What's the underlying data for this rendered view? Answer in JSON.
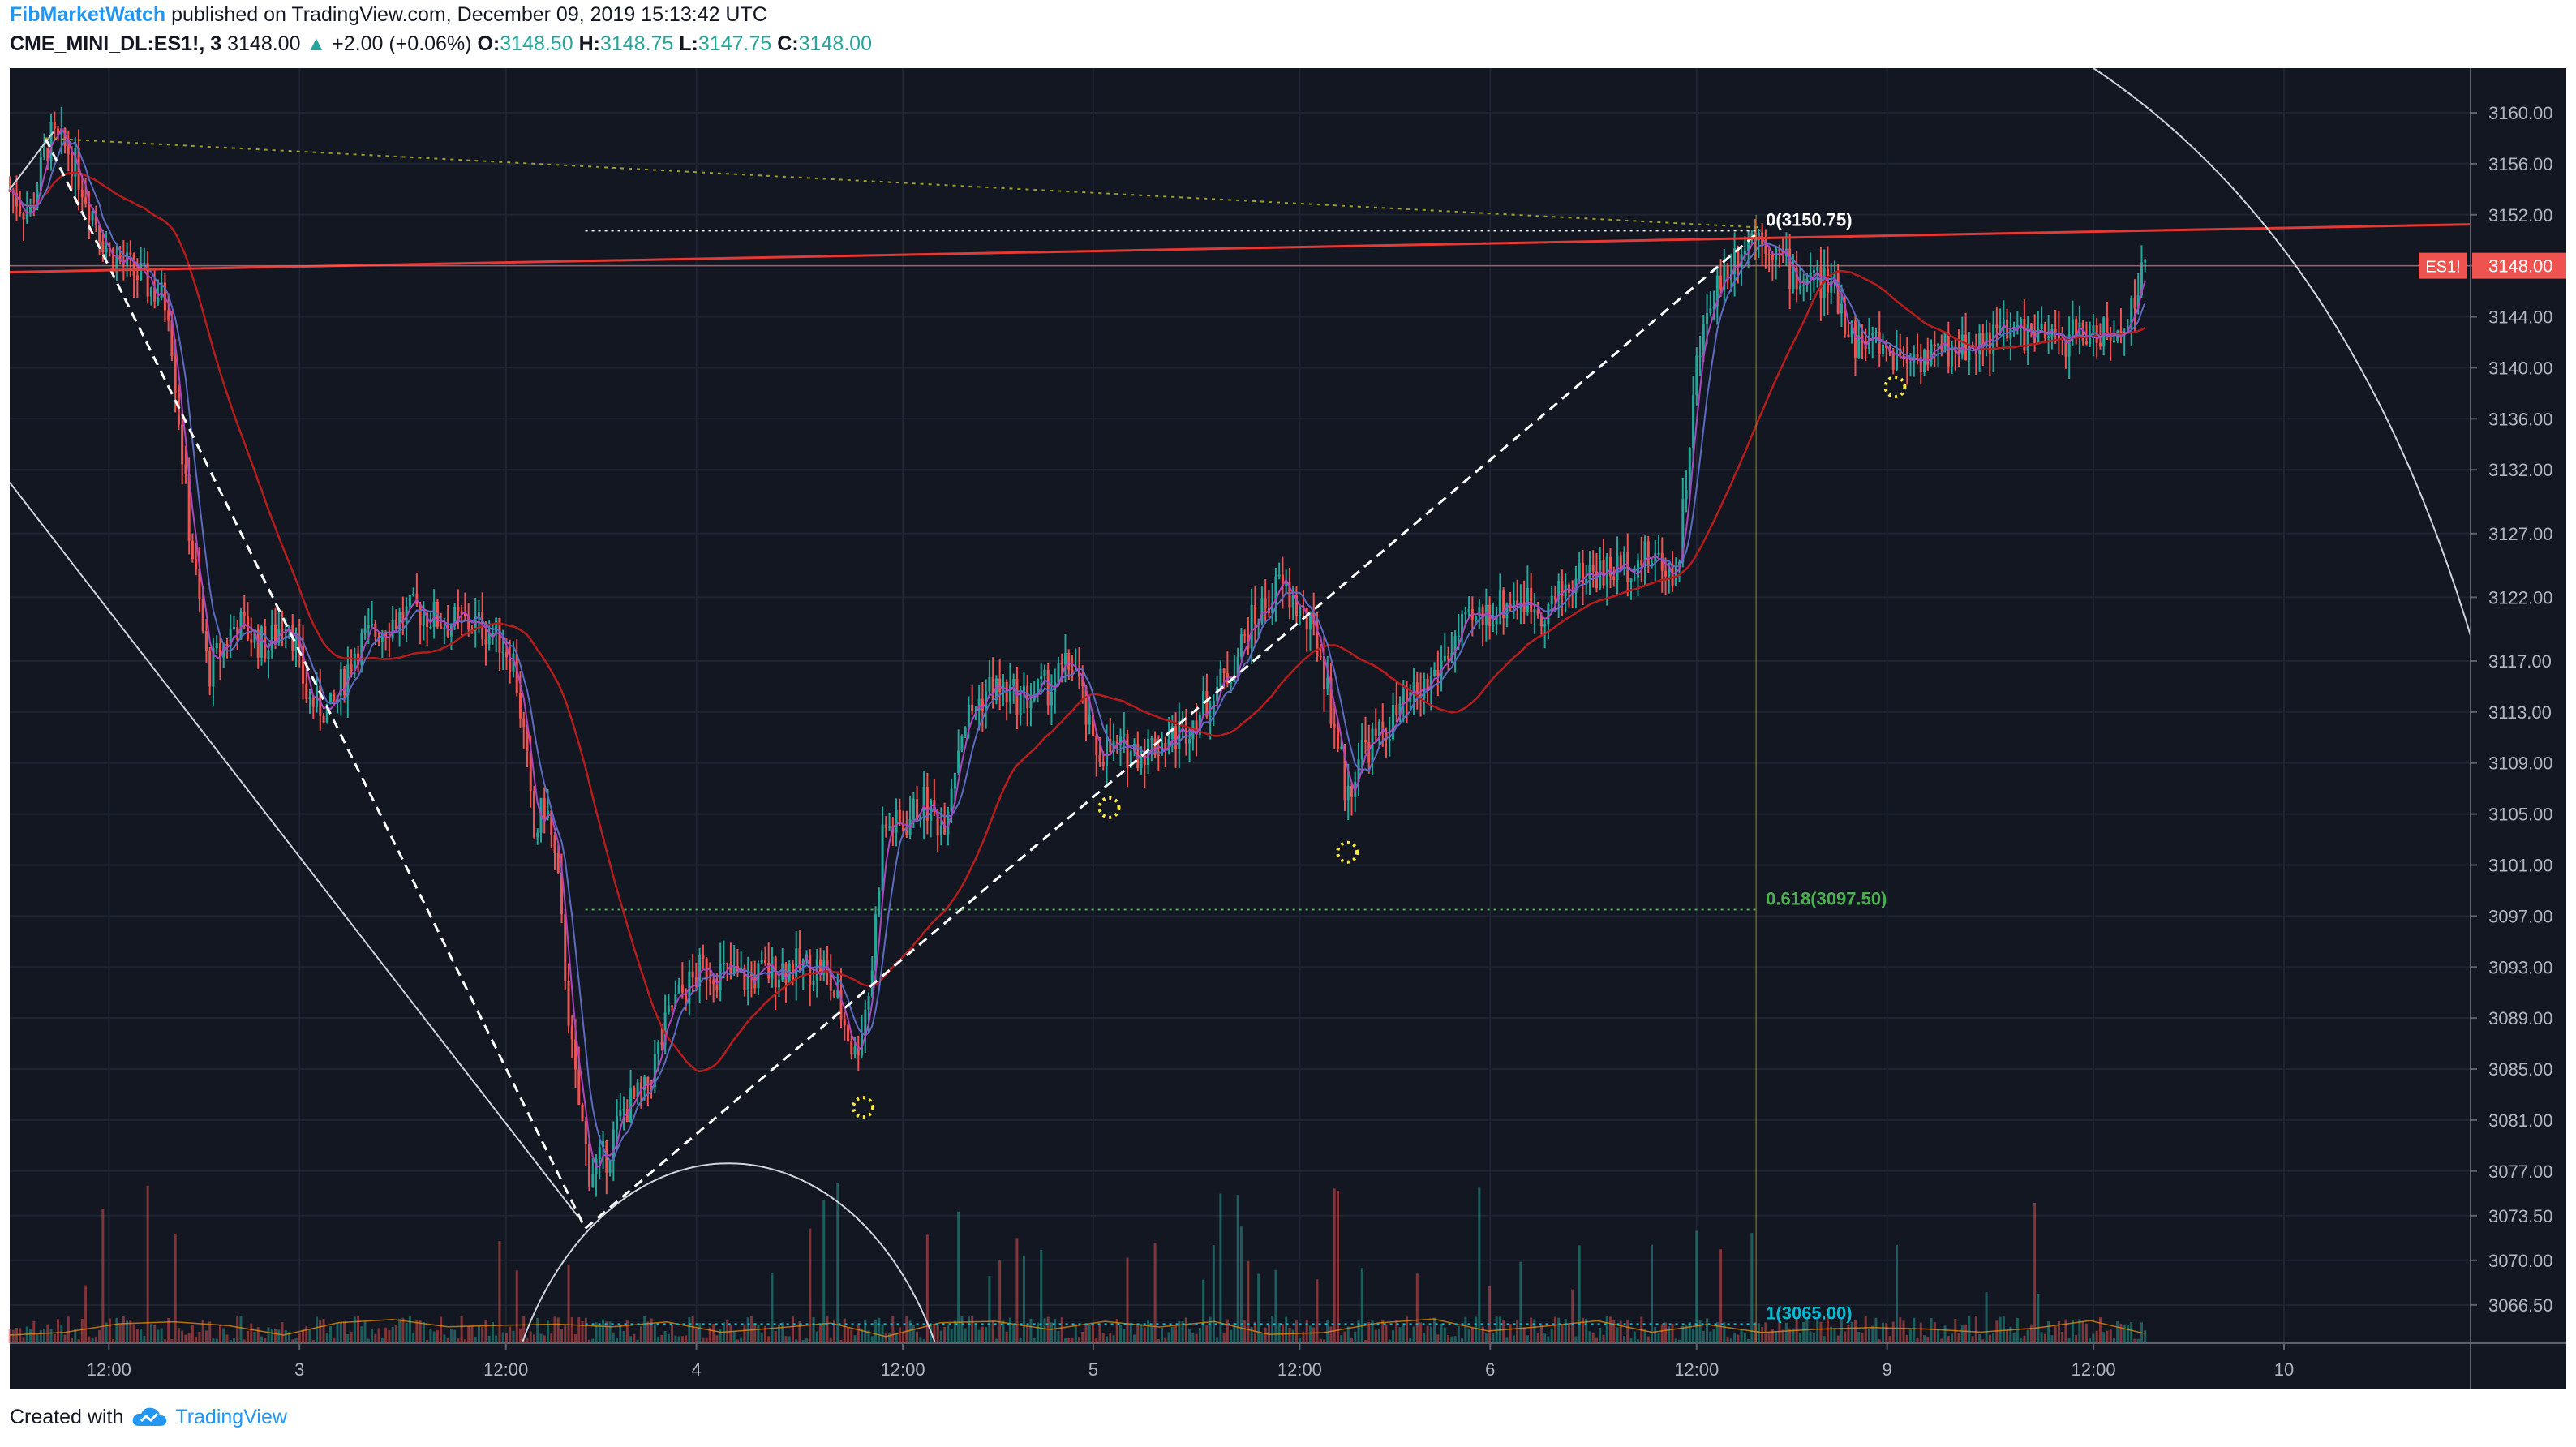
{
  "header": {
    "author": "FibMarketWatch",
    "published": "published on TradingView.com, December 09, 2019 15:13:42 UTC",
    "symbol": "CME_MINI_DL:ES1!, 3",
    "last": "3148.00",
    "change_arrow": "▲",
    "change": "+2.00 (+0.06%)",
    "o_label": "O:",
    "o_value": "3148.50",
    "h_label": "H:",
    "h_value": "3148.75",
    "l_label": "L:",
    "l_value": "3147.75",
    "c_label": "C:",
    "c_value": "3148.00"
  },
  "footer": {
    "created_with": "Created with",
    "brand": "TradingView"
  },
  "colors": {
    "background": "#131722",
    "up": "#26a69a",
    "down": "#ef5350",
    "ma_red": "#b71c1c",
    "ma_blue": "#5c6bc0",
    "ma_purple": "#ab47bc",
    "trendline": "#e53935",
    "fib_green": "#4caf50",
    "fib_cyan": "#00bcd4",
    "marker": "#ffeb3b"
  },
  "chart_data": {
    "type": "candlestick",
    "ylim": [
      3063.5,
      3163.5
    ],
    "y_ticks": [
      "3160.00",
      "3156.00",
      "3152.00",
      "3148.00",
      "3144.00",
      "3140.00",
      "3136.00",
      "3132.00",
      "3127.00",
      "3122.00",
      "3117.00",
      "3113.00",
      "3109.00",
      "3105.00",
      "3101.00",
      "3097.00",
      "3093.00",
      "3089.00",
      "3085.00",
      "3081.00",
      "3077.00",
      "3073.50",
      "3070.00",
      "3066.50"
    ],
    "y_tick_values": [
      3160,
      3156,
      3152,
      3148,
      3144,
      3140,
      3136,
      3132,
      3127,
      3122,
      3117,
      3113,
      3109,
      3105,
      3101,
      3097,
      3093,
      3089,
      3085,
      3081,
      3077,
      3073.5,
      3070,
      3066.5
    ],
    "x_ticks": [
      {
        "label": "12:00",
        "t": 0.1
      },
      {
        "label": "3",
        "t": 0.58
      },
      {
        "label": "12:00",
        "t": 1.1
      },
      {
        "label": "4",
        "t": 1.58
      },
      {
        "label": "12:00",
        "t": 2.1
      },
      {
        "label": "5",
        "t": 2.58
      },
      {
        "label": "12:00",
        "t": 3.1
      },
      {
        "label": "6",
        "t": 3.58
      },
      {
        "label": "12:00",
        "t": 4.1
      },
      {
        "label": "9",
        "t": 4.58
      },
      {
        "label": "12:00",
        "t": 5.1
      },
      {
        "label": "10",
        "t": 5.58
      }
    ],
    "t_range": [
      -0.15,
      6.05
    ],
    "price_path": [
      [
        -0.15,
        3154
      ],
      [
        -0.1,
        3152
      ],
      [
        -0.05,
        3158
      ],
      [
        0.0,
        3157
      ],
      [
        0.05,
        3153
      ],
      [
        0.1,
        3149
      ],
      [
        0.18,
        3147
      ],
      [
        0.25,
        3145
      ],
      [
        0.3,
        3128
      ],
      [
        0.35,
        3116
      ],
      [
        0.42,
        3120
      ],
      [
        0.5,
        3118
      ],
      [
        0.55,
        3121
      ],
      [
        0.6,
        3114
      ],
      [
        0.66,
        3113
      ],
      [
        0.72,
        3118
      ],
      [
        0.8,
        3120
      ],
      [
        0.88,
        3121
      ],
      [
        0.95,
        3120
      ],
      [
        1.02,
        3120
      ],
      [
        1.08,
        3119
      ],
      [
        1.12,
        3117
      ],
      [
        1.15,
        3110
      ],
      [
        1.17,
        3103
      ],
      [
        1.2,
        3106
      ],
      [
        1.23,
        3100
      ],
      [
        1.27,
        3085
      ],
      [
        1.31,
        3077
      ],
      [
        1.35,
        3078
      ],
      [
        1.4,
        3082
      ],
      [
        1.45,
        3083
      ],
      [
        1.52,
        3090
      ],
      [
        1.6,
        3093
      ],
      [
        1.7,
        3092
      ],
      [
        1.8,
        3093
      ],
      [
        1.9,
        3093
      ],
      [
        1.95,
        3089
      ],
      [
        1.98,
        3086
      ],
      [
        2.02,
        3092
      ],
      [
        2.05,
        3104
      ],
      [
        2.1,
        3104
      ],
      [
        2.15,
        3106
      ],
      [
        2.2,
        3104
      ],
      [
        2.25,
        3112
      ],
      [
        2.32,
        3115
      ],
      [
        2.4,
        3114
      ],
      [
        2.47,
        3115
      ],
      [
        2.53,
        3117
      ],
      [
        2.58,
        3110
      ],
      [
        2.63,
        3110
      ],
      [
        2.7,
        3110
      ],
      [
        2.78,
        3111
      ],
      [
        2.85,
        3113
      ],
      [
        2.92,
        3116
      ],
      [
        2.98,
        3120
      ],
      [
        3.05,
        3123
      ],
      [
        3.1,
        3121
      ],
      [
        3.15,
        3118
      ],
      [
        3.2,
        3110
      ],
      [
        3.22,
        3106
      ],
      [
        3.25,
        3110
      ],
      [
        3.3,
        3111
      ],
      [
        3.35,
        3113
      ],
      [
        3.42,
        3115
      ],
      [
        3.5,
        3119
      ],
      [
        3.58,
        3121
      ],
      [
        3.65,
        3122
      ],
      [
        3.72,
        3121
      ],
      [
        3.78,
        3123
      ],
      [
        3.82,
        3124
      ],
      [
        3.88,
        3124
      ],
      [
        3.95,
        3125
      ],
      [
        4.0,
        3125
      ],
      [
        4.05,
        3124
      ],
      [
        4.07,
        3130
      ],
      [
        4.1,
        3140
      ],
      [
        4.14,
        3146
      ],
      [
        4.18,
        3148
      ],
      [
        4.22,
        3150
      ],
      [
        4.26,
        3150.75
      ],
      [
        4.3,
        3149
      ],
      [
        4.35,
        3147
      ],
      [
        4.4,
        3147
      ],
      [
        4.45,
        3146
      ],
      [
        4.5,
        3142
      ],
      [
        4.55,
        3142
      ],
      [
        4.6,
        3141
      ],
      [
        4.7,
        3141
      ],
      [
        4.8,
        3142
      ],
      [
        4.9,
        3143
      ],
      [
        5.0,
        3142
      ],
      [
        5.1,
        3143
      ],
      [
        5.15,
        3142
      ],
      [
        5.2,
        3145
      ],
      [
        5.23,
        3148
      ]
    ],
    "fib_levels": [
      {
        "label": "0(3150.75)",
        "value": 3150.75
      },
      {
        "label": "0.618(3097.50)",
        "value": 3097.5
      },
      {
        "label": "1(3065.00)",
        "value": 3065.0
      }
    ],
    "current_price_label": {
      "symbol": "ES1!",
      "value": "3148.00"
    },
    "markers": [
      {
        "t": 2.0,
        "v": 3082
      },
      {
        "t": 2.62,
        "v": 3105.5
      },
      {
        "t": 3.22,
        "v": 3102
      },
      {
        "t": 4.6,
        "v": 3138.5
      }
    ]
  }
}
